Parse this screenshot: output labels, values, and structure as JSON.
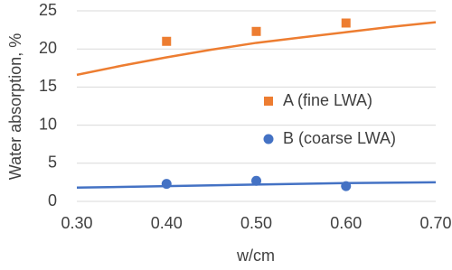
{
  "chart_data": {
    "type": "scatter",
    "x_label": "w/cm",
    "y_label": "Water absorption, %",
    "xlim": [
      0.3,
      0.7
    ],
    "xticks": [
      {
        "value": 0.3,
        "label": "0.30"
      },
      {
        "value": 0.4,
        "label": "0.40"
      },
      {
        "value": 0.5,
        "label": "0.50"
      },
      {
        "value": 0.6,
        "label": "0.60"
      },
      {
        "value": 0.7,
        "label": "0.70"
      }
    ],
    "ylim": [
      0,
      25
    ],
    "yticks": [
      0,
      5,
      10,
      15,
      20,
      25
    ],
    "grid": true,
    "series": [
      {
        "name": "A (fine LWA)",
        "color": "#ed7d31",
        "marker": "square",
        "x": [
          0.4,
          0.5,
          0.6
        ],
        "values": [
          21.0,
          22.3,
          23.4
        ],
        "trendline": {
          "x": [
            0.3,
            0.35,
            0.4,
            0.45,
            0.5,
            0.55,
            0.6,
            0.65,
            0.7
          ],
          "values": [
            16.6,
            17.8,
            18.9,
            19.9,
            20.8,
            21.5,
            22.2,
            22.9,
            23.5
          ]
        }
      },
      {
        "name": "B (coarse LWA)",
        "color": "#4472c4",
        "marker": "circle",
        "x": [
          0.4,
          0.5,
          0.6
        ],
        "values": [
          2.3,
          2.7,
          2.0
        ],
        "trendline": {
          "x": [
            0.3,
            0.4,
            0.5,
            0.6,
            0.7
          ],
          "values": [
            1.8,
            2.0,
            2.2,
            2.4,
            2.5
          ]
        }
      }
    ]
  }
}
